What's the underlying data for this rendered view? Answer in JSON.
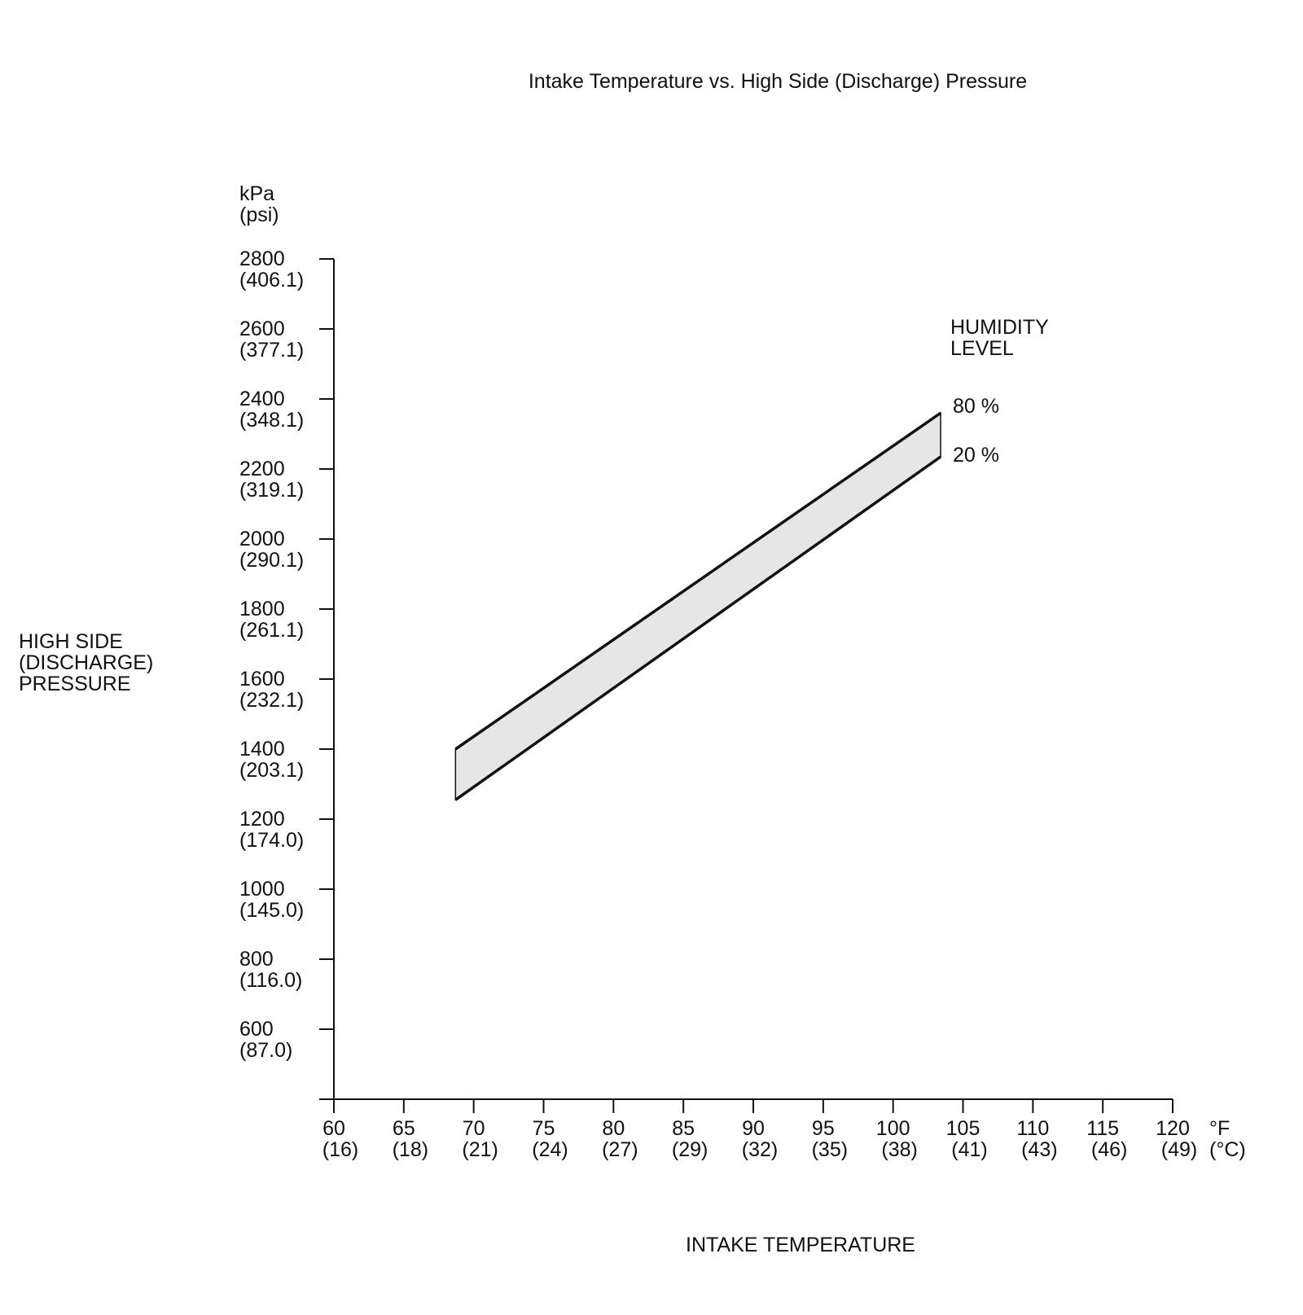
{
  "chart_data": {
    "type": "area",
    "title": "Intake Temperature vs. High Side (Discharge) Pressure",
    "xlabel": "INTAKE TEMPERATURE",
    "ylabel": [
      "HIGH SIDE",
      "(DISCHARGE)",
      "PRESSURE"
    ],
    "y_unit": [
      "kPa",
      "(psi)"
    ],
    "x_unit": [
      "°F",
      "(°C)"
    ],
    "legend_title": [
      "HUMIDITY",
      "LEVEL"
    ],
    "xlim": [
      60,
      120
    ],
    "ylim": [
      400,
      2800
    ],
    "x_ticks": [
      {
        "f": "60",
        "c": "(16)",
        "value": 60
      },
      {
        "f": "65",
        "c": "(18)",
        "value": 65
      },
      {
        "f": "70",
        "c": "(21)",
        "value": 70
      },
      {
        "f": "75",
        "c": "(24)",
        "value": 75
      },
      {
        "f": "80",
        "c": "(27)",
        "value": 80
      },
      {
        "f": "85",
        "c": "(29)",
        "value": 85
      },
      {
        "f": "90",
        "c": "(32)",
        "value": 90
      },
      {
        "f": "95",
        "c": "(35)",
        "value": 95
      },
      {
        "f": "100",
        "c": "(38)",
        "value": 100
      },
      {
        "f": "105",
        "c": "(41)",
        "value": 105
      },
      {
        "f": "110",
        "c": "(43)",
        "value": 110
      },
      {
        "f": "115",
        "c": "(46)",
        "value": 115
      },
      {
        "f": "120",
        "c": "(49)",
        "value": 120
      }
    ],
    "y_ticks": [
      {
        "kpa": "2800",
        "psi": "(406.1)",
        "value": 2800
      },
      {
        "kpa": "2600",
        "psi": "(377.1)",
        "value": 2600
      },
      {
        "kpa": "2400",
        "psi": "(348.1)",
        "value": 2400
      },
      {
        "kpa": "2200",
        "psi": "(319.1)",
        "value": 2200
      },
      {
        "kpa": "2000",
        "psi": "(290.1)",
        "value": 2000
      },
      {
        "kpa": "1800",
        "psi": "(261.1)",
        "value": 1800
      },
      {
        "kpa": "1600",
        "psi": "(232.1)",
        "value": 1600
      },
      {
        "kpa": "1400",
        "psi": "(203.1)",
        "value": 1400
      },
      {
        "kpa": "1200",
        "psi": "(174.0)",
        "value": 1200
      },
      {
        "kpa": "1000",
        "psi": "(145.0)",
        "value": 1000
      },
      {
        "kpa": "800",
        "psi": "(116.0)",
        "value": 800
      },
      {
        "kpa": "600",
        "psi": "(87.0)",
        "value": 600
      }
    ],
    "series": [
      {
        "name": "80 %",
        "points": [
          [
            68.7,
            1400
          ],
          [
            103.4,
            2360
          ]
        ]
      },
      {
        "name": "20 %",
        "points": [
          [
            68.7,
            1255
          ],
          [
            103.4,
            2235
          ]
        ]
      }
    ],
    "band": {
      "between": [
        "80 %",
        "20 %"
      ],
      "fill": "#e6e6e6"
    },
    "line_color": "#111111",
    "grid": false
  }
}
